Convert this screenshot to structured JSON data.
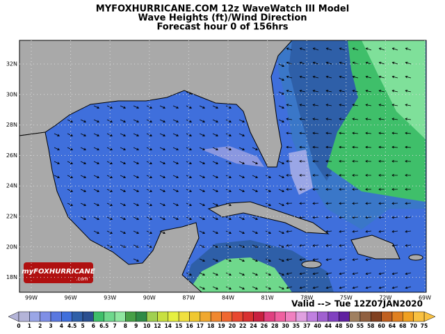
{
  "header": {
    "title": "MYFOXHURRICANE.COM 12z WaveWatch III Model",
    "subtitle": "Wave Heights (ft)/Wind Direction",
    "forecast": "Forecast hour 0 of 156hrs"
  },
  "map": {
    "lat_labels": [
      "32N",
      "30N",
      "28N",
      "26N",
      "24N",
      "22N",
      "20N",
      "18N"
    ],
    "lon_labels": [
      "99W",
      "96W",
      "93W",
      "90W",
      "87W",
      "84W",
      "81W",
      "78W",
      "75W",
      "72W",
      "69W"
    ],
    "valid": "Valid --> Tue 12Z07JAN2020",
    "logo": {
      "name": "myFOXHURRICANE",
      "suffix": ".com"
    }
  },
  "legend": {
    "labels": [
      0,
      1,
      2,
      3,
      4,
      4.5,
      5,
      6,
      6.5,
      7,
      8,
      9,
      10,
      12,
      14,
      15,
      16,
      17,
      18,
      19,
      20,
      22,
      24,
      26,
      28,
      30,
      35,
      37,
      40,
      44,
      48,
      50,
      55,
      58,
      60,
      64,
      68,
      70,
      75
    ]
  }
}
